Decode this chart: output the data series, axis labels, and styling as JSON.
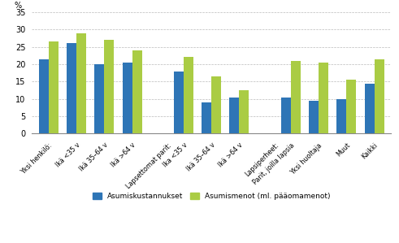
{
  "categories": [
    "Yksi henkilö:",
    "Ikä <35 v",
    "Ikä 35–64 v",
    "Ikä >64 v",
    "Lapsettomat parit:",
    "Ika <35 v",
    "Ikä 35–64 v",
    "Ikä >64 v",
    "Lapsiperheet:",
    "Parit, joilla lapsia",
    "Yksi huoltaja",
    "Muut",
    "Kaikki"
  ],
  "blue_values": [
    21.5,
    26.0,
    20.0,
    20.5,
    null,
    18.0,
    9.0,
    10.5,
    null,
    10.5,
    9.5,
    10.0,
    14.5
  ],
  "green_values": [
    26.5,
    29.0,
    27.0,
    24.0,
    null,
    22.0,
    16.5,
    12.5,
    null,
    21.0,
    20.5,
    15.5,
    21.5
  ],
  "blue_color": "#2E75B6",
  "green_color": "#AACC44",
  "ylabel": "%",
  "ylim": [
    0,
    35
  ],
  "yticks": [
    0,
    5,
    10,
    15,
    20,
    25,
    30,
    35
  ],
  "legend_blue": "Asumiskustannukset",
  "legend_green": "Asumismenot (ml. pääomamenot)",
  "bar_width": 0.35
}
